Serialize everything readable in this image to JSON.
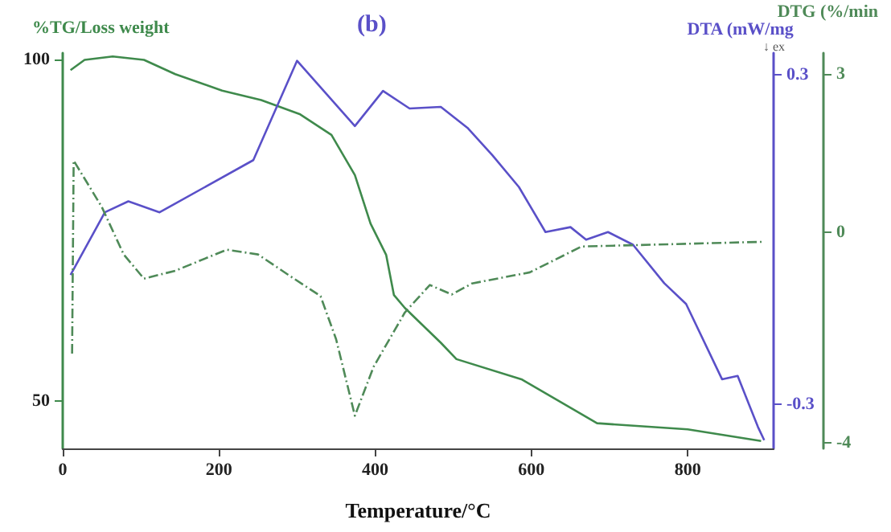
{
  "chart_data": {
    "type": "line",
    "title": "(b)",
    "xlabel": "Temperature/°C",
    "ylabel": "%TG/Loss weight",
    "y2label": "DTA (mW/mg",
    "y3label": "DTG (%/min",
    "annotations": [
      "↓ ex"
    ],
    "xlim": [
      0,
      910
    ],
    "xticks": [
      0,
      200,
      400,
      600,
      800
    ],
    "ylim": [
      43,
      101
    ],
    "yticks": [
      50,
      100
    ],
    "y2lim": [
      -0.38,
      0.34
    ],
    "y2ticks": [
      -0.3,
      0.3
    ],
    "y3lim": [
      -4.1,
      3.4
    ],
    "y3ticks": [
      -4,
      0,
      3
    ],
    "grid": false,
    "marker": "none",
    "series": [
      {
        "color": "#3f8a4c",
        "line_style": "solid",
        "x": [
          10,
          28,
          64,
          104,
          144,
          204,
          254,
          304,
          344,
          374,
          394,
          404,
          414,
          424,
          438,
          484,
          504,
          588,
          684,
          800,
          894
        ],
        "values": [
          98.5,
          100,
          100.5,
          100,
          97.9,
          95.5,
          94.1,
          92,
          89,
          83.1,
          76,
          73.7,
          71.4,
          65.5,
          63.6,
          58.5,
          56.1,
          53.1,
          46.7,
          45.8,
          44.1
        ]
      },
      {
        "color": "#5a50c8",
        "line_style": "solid",
        "axis": "y2",
        "x": [
          10,
          54,
          84,
          124,
          244,
          300,
          374,
          410,
          444,
          484,
          518,
          550,
          584,
          618,
          650,
          670,
          698,
          730,
          770,
          798,
          844,
          864,
          890,
          898
        ],
        "values": [
          -0.064,
          0.05,
          0.07,
          0.05,
          0.145,
          0.326,
          0.207,
          0.271,
          0.239,
          0.242,
          0.204,
          0.154,
          0.096,
          0.014,
          0.023,
          0,
          0.014,
          -0.009,
          -0.079,
          -0.117,
          -0.254,
          -0.248,
          -0.341,
          -0.365
        ]
      },
      {
        "color": "#4f8a58",
        "line_style": "dashed",
        "axis": "y3",
        "x": [
          12,
          14,
          50,
          78,
          104,
          144,
          210,
          250,
          290,
          330,
          350,
          374,
          398,
          438,
          470,
          498,
          524,
          598,
          664,
          898
        ],
        "values": [
          -2.3,
          1.36,
          0.48,
          -0.42,
          -0.88,
          -0.73,
          -0.33,
          -0.42,
          -0.82,
          -1.21,
          -2.03,
          -3.48,
          -2.55,
          -1.52,
          -1.0,
          -1.18,
          -0.97,
          -0.76,
          -0.27,
          -0.18
        ]
      }
    ]
  }
}
